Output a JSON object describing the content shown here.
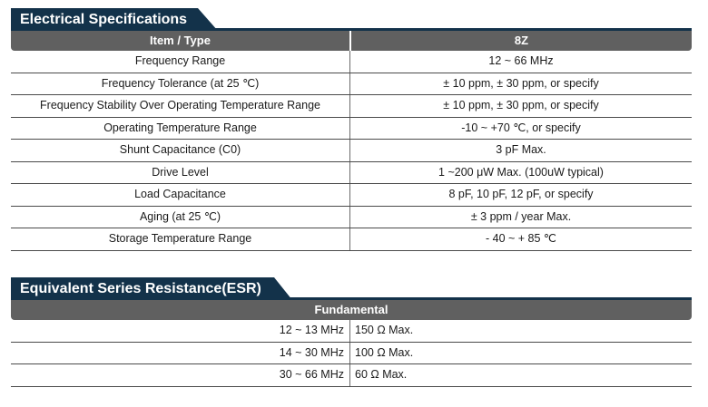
{
  "electrical": {
    "title": "Electrical Specifications",
    "headers": {
      "item": "Item / Type",
      "type": "8Z"
    },
    "rows": [
      {
        "item": "Frequency Range",
        "value": "12 ~ 66 MHz"
      },
      {
        "item": "Frequency Tolerance (at 25 ℃)",
        "value": "± 10 ppm, ± 30 ppm, or specify"
      },
      {
        "item": "Frequency Stability Over Operating Temperature Range",
        "value": "± 10 ppm, ± 30 ppm, or specify"
      },
      {
        "item": "Operating Temperature Range",
        "value": "-10 ~ +70 ℃, or specify"
      },
      {
        "item": "Shunt Capacitance (C0)",
        "value": "3 pF Max."
      },
      {
        "item": "Drive Level",
        "value": "1 ~200 μW Max. (100uW typical)"
      },
      {
        "item": "Load Capacitance",
        "value": "8 pF, 10 pF, 12 pF, or specify"
      },
      {
        "item": "Aging (at 25 ℃)",
        "value": "± 3 ppm / year Max."
      },
      {
        "item": "Storage Temperature Range",
        "value": "- 40 ~ + 85 ℃"
      }
    ]
  },
  "esr": {
    "title": "Equivalent Series Resistance(ESR)",
    "header": "Fundamental",
    "rows": [
      {
        "freq": "12 ~ 13 MHz",
        "value": "150 Ω Max."
      },
      {
        "freq": "14 ~ 30 MHz",
        "value": "100 Ω Max."
      },
      {
        "freq": "30 ~ 66 MHz",
        "value": "60 Ω Max."
      }
    ]
  }
}
